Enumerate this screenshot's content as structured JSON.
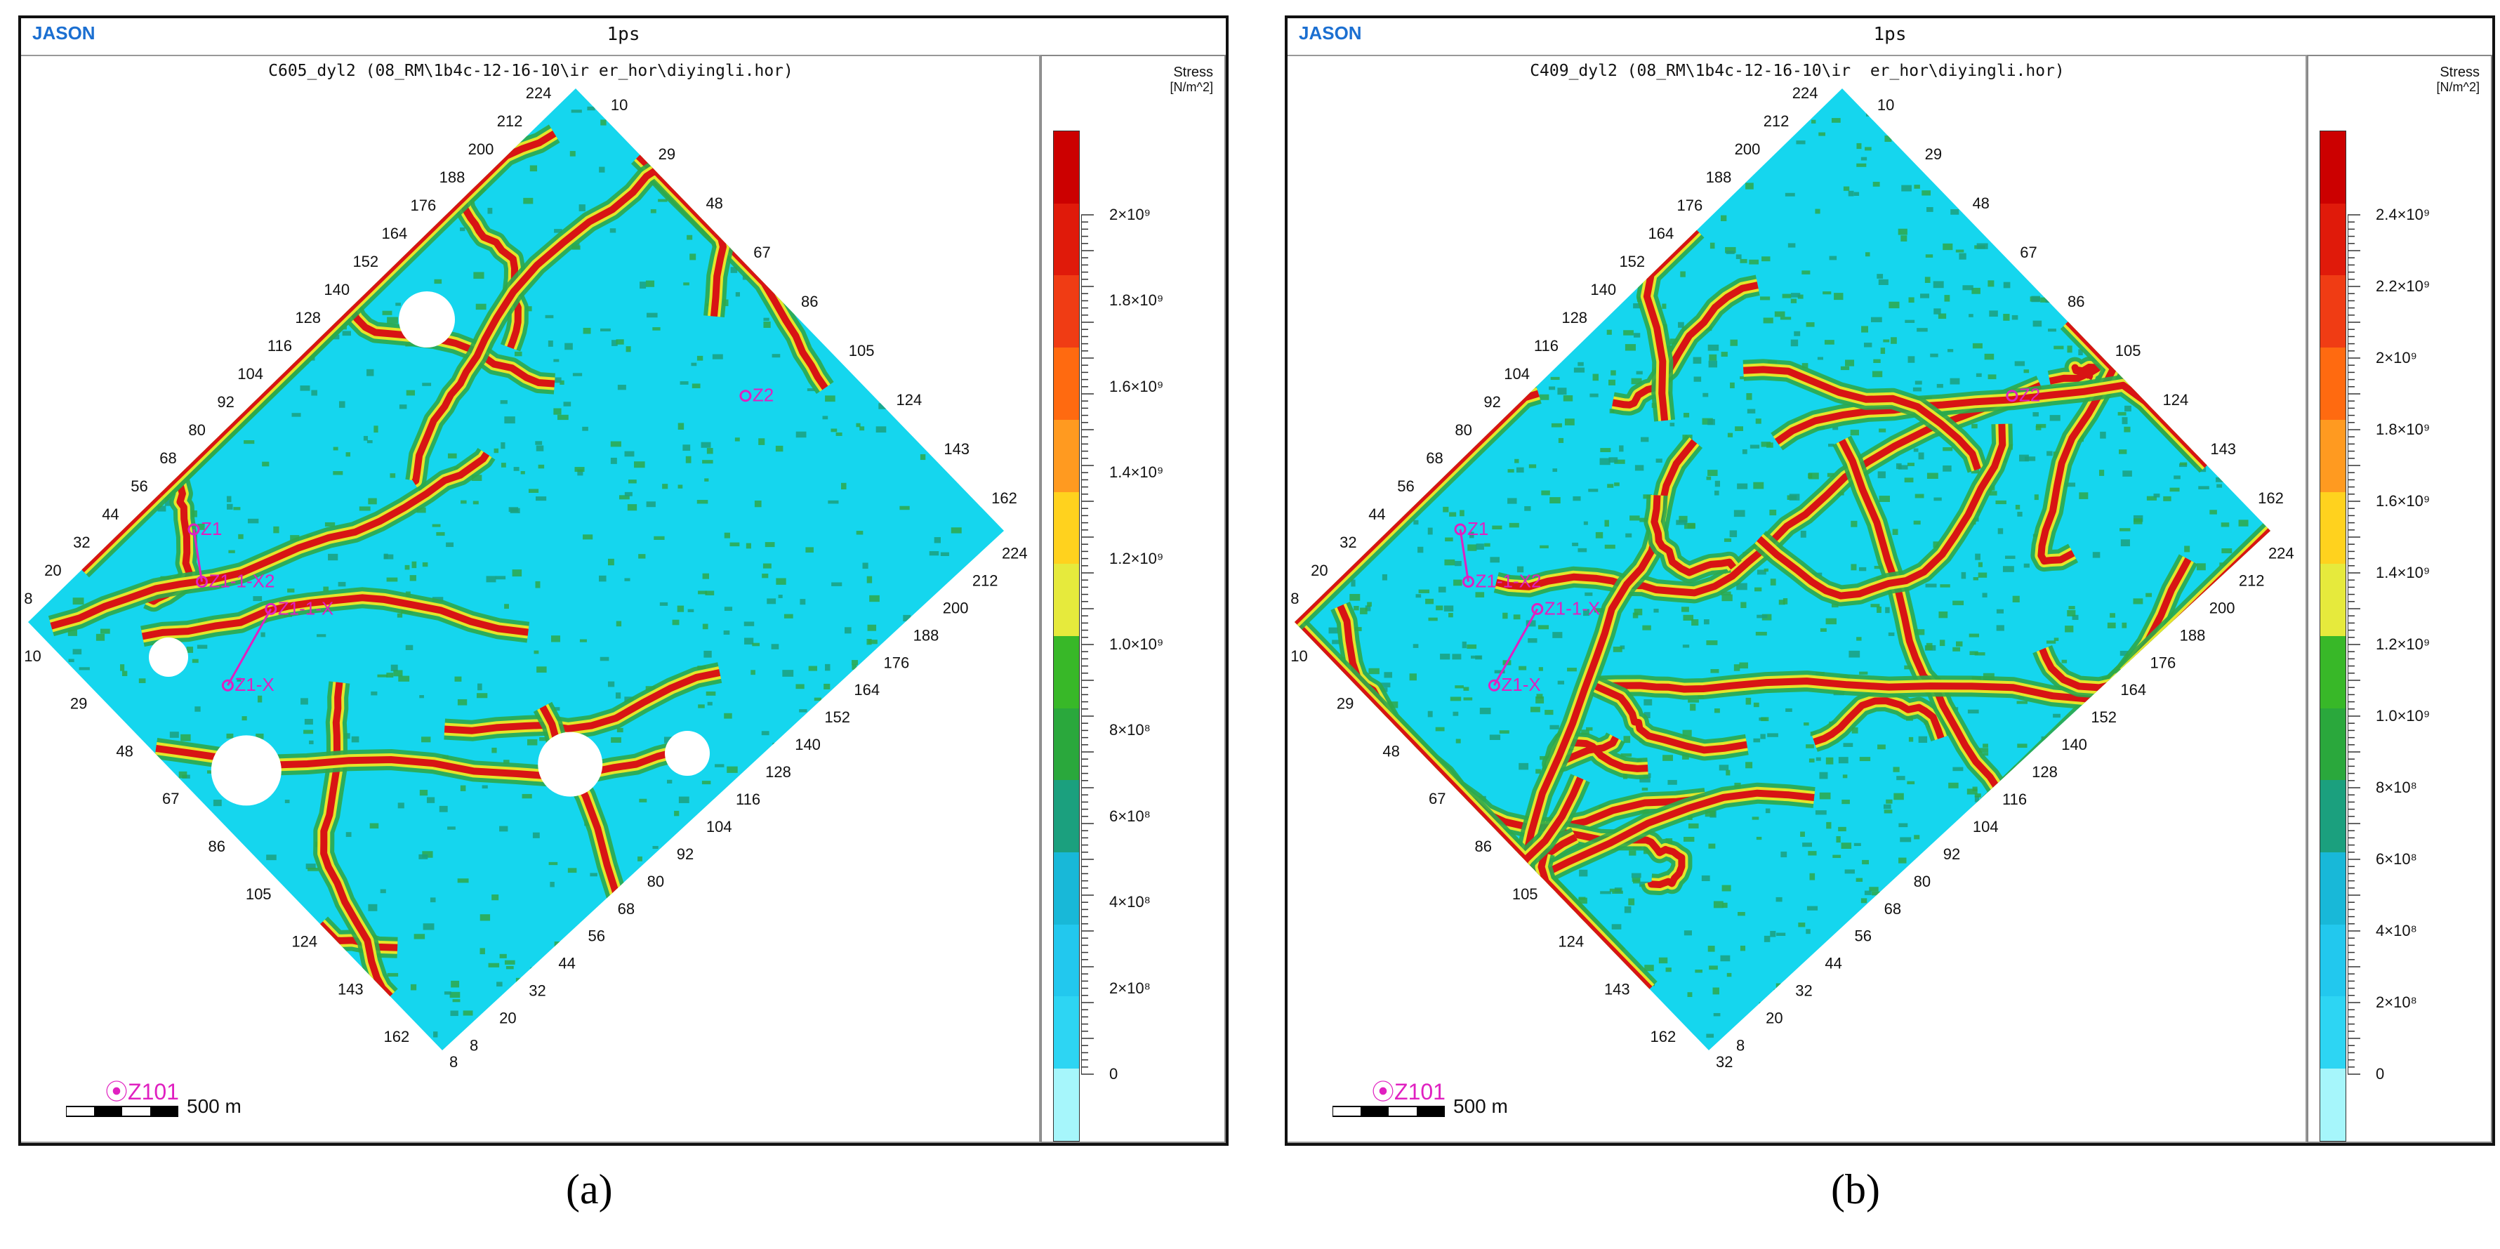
{
  "caption_a": "(a)",
  "caption_b": "(b)",
  "panels": {
    "a": {
      "brand": "JASON",
      "window_title": "1ps",
      "map_title": "C605_dyl2 (08_RM\\1b4c-12-16-10\\ir er_hor\\diyingli.hor)",
      "legend_title": "Stress",
      "legend_unit": "[N/m^2]",
      "legend_labels": [
        "2×10⁹",
        "1.8×10⁹",
        "1.6×10⁹",
        "1.4×10⁹",
        "1.2×10⁹",
        "1.0×10⁹",
        "8×10⁸",
        "6×10⁸",
        "4×10⁸",
        "2×10⁸",
        "0"
      ],
      "scale_label": "500 m",
      "well_bottom": "Z101",
      "wells": [
        "Z2",
        "Z1",
        "Z1-1-X2",
        "Z1-1-X",
        "Z1-X"
      ],
      "top_left_axis": [
        "224",
        "212",
        "200",
        "188",
        "176",
        "164",
        "152",
        "140",
        "128",
        "116",
        "104",
        "92",
        "80",
        "68",
        "56",
        "44",
        "32",
        "20",
        "8"
      ],
      "top_right_axis": [
        "10",
        "29",
        "48",
        "67",
        "86",
        "105",
        "124",
        "143",
        "162"
      ],
      "bottom_left_axis": [
        "10",
        "29",
        "48",
        "67",
        "86",
        "105",
        "124",
        "143",
        "162"
      ],
      "bottom_right_axis": [
        "224",
        "212",
        "200",
        "188",
        "176",
        "164",
        "152",
        "140",
        "128",
        "116",
        "104",
        "92",
        "80",
        "68",
        "56",
        "44",
        "32",
        "20",
        "8"
      ],
      "corner_bottom": "8"
    },
    "b": {
      "brand": "JASON",
      "window_title": "1ps",
      "map_title": "C409_dyl2 (08_RM\\1b4c-12-16-10\\ir  er_hor\\diyingli.hor)",
      "legend_title": "Stress",
      "legend_unit": "[N/m^2]",
      "legend_labels": [
        "2.4×10⁹",
        "2.2×10⁹",
        "2×10⁹",
        "1.8×10⁹",
        "1.6×10⁹",
        "1.4×10⁹",
        "1.2×10⁹",
        "1.0×10⁹",
        "8×10⁸",
        "6×10⁸",
        "4×10⁸",
        "2×10⁸",
        "0"
      ],
      "scale_label": "500 m",
      "well_bottom": "Z101",
      "wells": [
        "Z2",
        "Z1",
        "Z1-1-X2",
        "Z1-1-X",
        "Z1-X"
      ],
      "top_left_axis": [
        "224",
        "212",
        "200",
        "188",
        "176",
        "164",
        "152",
        "140",
        "128",
        "116",
        "104",
        "92",
        "80",
        "68",
        "56",
        "44",
        "32",
        "20",
        "8"
      ],
      "top_right_axis": [
        "10",
        "29",
        "48",
        "67",
        "86",
        "105",
        "124",
        "143",
        "162"
      ],
      "bottom_left_axis": [
        "10",
        "29",
        "48",
        "67",
        "86",
        "105",
        "124",
        "143",
        "162"
      ],
      "bottom_right_axis": [
        "224",
        "212",
        "200",
        "188",
        "176",
        "164",
        "152",
        "140",
        "128",
        "116",
        "104",
        "92",
        "80",
        "68",
        "56",
        "44",
        "32",
        "20",
        "8"
      ],
      "corner_bottom": "32"
    }
  },
  "colors": {
    "background_map": "#15d6ee",
    "fracture_low": "#2ea84a",
    "fracture_mid": "#e3e62a",
    "fracture_high": "#d81414",
    "well": "#e020c0",
    "legend_scale": [
      "#cc0000",
      "#e01a0a",
      "#f03c14",
      "#ff6a10",
      "#ff9a20",
      "#ffd21e",
      "#e6ea3c",
      "#38b828",
      "#2aa83c",
      "#1ba07e",
      "#18b8d8",
      "#22c8ee",
      "#2dd5f3",
      "#a6f6fb"
    ]
  }
}
